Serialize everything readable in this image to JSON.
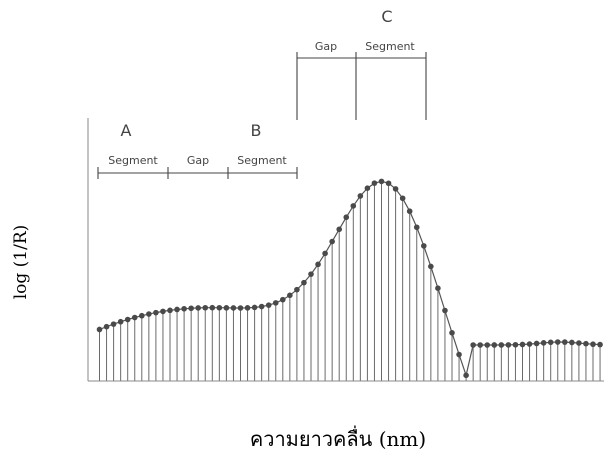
{
  "y_axis_label": "log (1/R)",
  "x_axis_label": "ความยาวคลื่น (nm)",
  "groups": {
    "a": {
      "letter": "A",
      "segment_label": "Segment",
      "gap_label": "Gap"
    },
    "b": {
      "letter": "B",
      "segment_label": "Segment"
    },
    "c": {
      "letter": "C",
      "gap_label": "Gap",
      "segment_label": "Segment"
    }
  },
  "colors": {
    "curve": "#555555",
    "stem": "#6a6a6a",
    "point": "#4a4a4a",
    "bracket": "#444444"
  }
}
